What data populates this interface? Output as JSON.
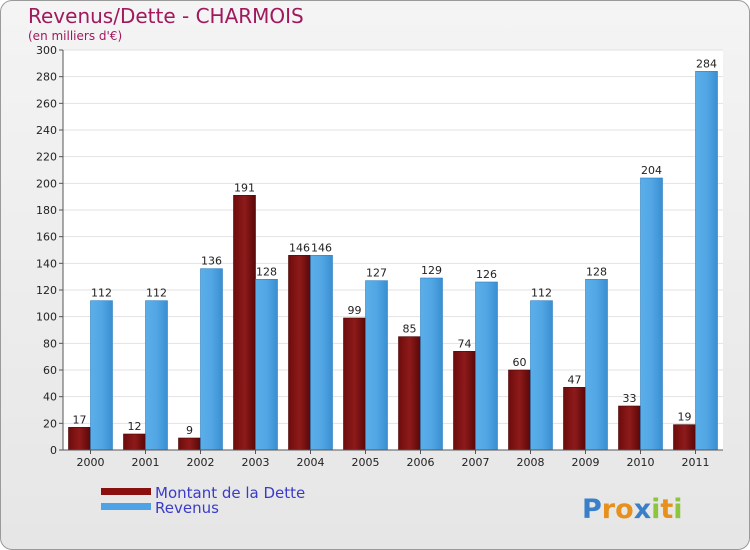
{
  "chart_data": {
    "type": "bar",
    "title": "Revenus/Dette - CHARMOIS",
    "subtitle": "(en milliers d'€)",
    "categories": [
      "2000",
      "2001",
      "2002",
      "2003",
      "2004",
      "2005",
      "2006",
      "2007",
      "2008",
      "2009",
      "2010",
      "2011"
    ],
    "series": [
      {
        "name": "Montant de la Dette",
        "color": "#8a0f0f",
        "values": [
          17,
          12,
          9,
          191,
          146,
          99,
          85,
          74,
          60,
          47,
          33,
          19
        ]
      },
      {
        "name": "Revenus",
        "color": "#4da3e6",
        "values": [
          112,
          112,
          136,
          128,
          146,
          127,
          129,
          126,
          112,
          128,
          204,
          284
        ]
      }
    ],
    "ylim": [
      0,
      300
    ],
    "yticks": [
      0,
      20,
      40,
      60,
      80,
      100,
      120,
      140,
      160,
      180,
      200,
      220,
      240,
      260,
      280,
      300
    ],
    "grid": true,
    "legend": "bottom-left"
  },
  "brand": {
    "letters": [
      "P",
      "r",
      "o",
      "x",
      "i",
      "t",
      "i"
    ],
    "colors": [
      "#3a80c8",
      "#e8901c",
      "#e8901c",
      "#3a80c8",
      "#8cc63f",
      "#e8901c",
      "#8cc63f"
    ]
  }
}
